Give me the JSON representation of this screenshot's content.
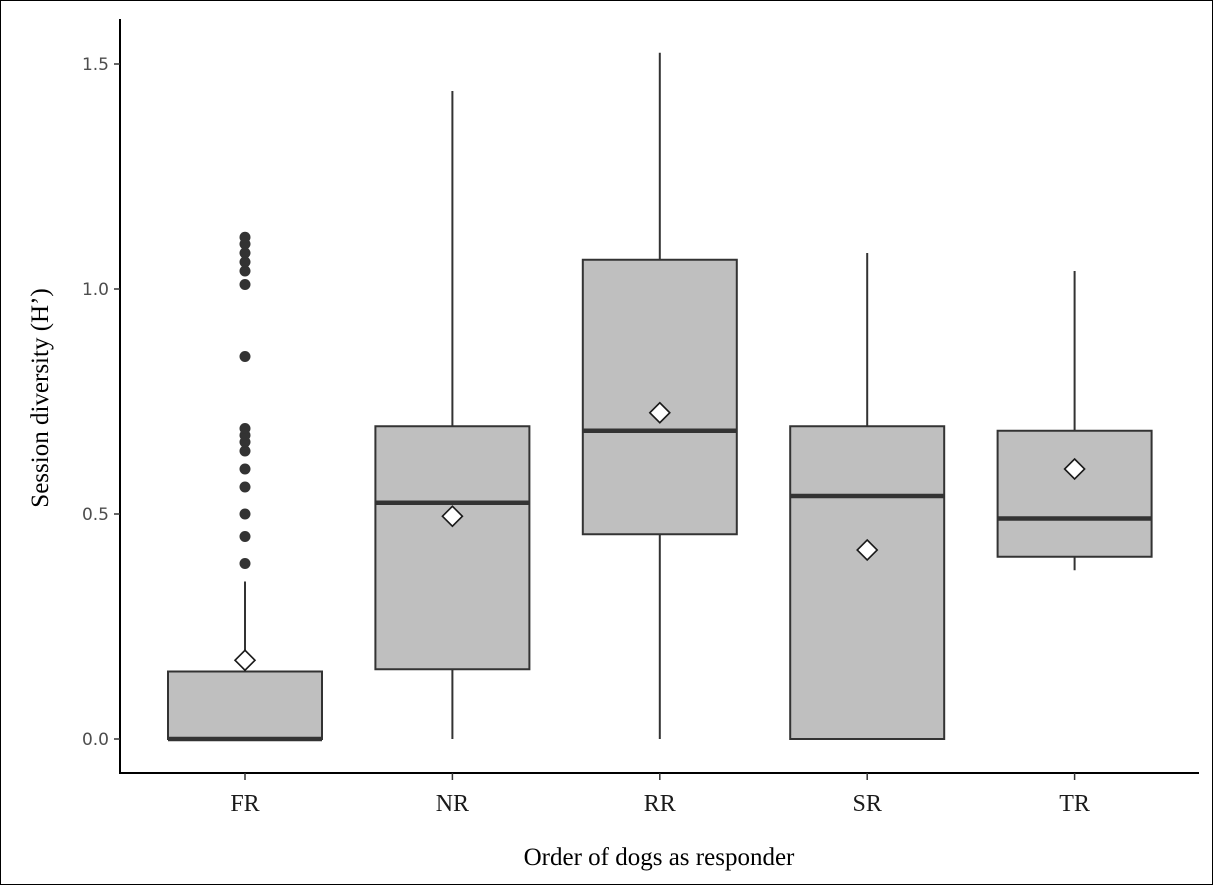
{
  "chart_data": {
    "type": "boxplot",
    "xlabel": "Order of dogs as responder",
    "ylabel": "Session diversity (H’)",
    "ylim": [
      -0.08,
      1.6
    ],
    "yticks": [
      0.0,
      0.5,
      1.0,
      1.5
    ],
    "ytick_labels": [
      "0.0",
      "0.5",
      "1.0",
      "1.5"
    ],
    "grid": false,
    "legend": "none",
    "colors": {
      "box_fill": "#bfbfbf",
      "box_stroke": "#333333",
      "outlier": "#333333",
      "axis": "#000000"
    },
    "boxes": [
      {
        "category": "FR",
        "whisker_low": 0.0,
        "q1": 0.0,
        "median": 0.0,
        "q3": 0.15,
        "whisker_high": 0.35,
        "mean": 0.175,
        "outliers": [
          0.39,
          0.45,
          0.5,
          0.56,
          0.6,
          0.64,
          0.66,
          0.675,
          0.69,
          0.85,
          1.01,
          1.04,
          1.06,
          1.08,
          1.1,
          1.115
        ]
      },
      {
        "category": "NR",
        "whisker_low": 0.0,
        "q1": 0.155,
        "median": 0.525,
        "q3": 0.695,
        "whisker_high": 1.44,
        "mean": 0.495,
        "outliers": []
      },
      {
        "category": "RR",
        "whisker_low": 0.0,
        "q1": 0.455,
        "median": 0.685,
        "q3": 1.065,
        "whisker_high": 1.525,
        "mean": 0.725,
        "outliers": []
      },
      {
        "category": "SR",
        "whisker_low": 0.0,
        "q1": 0.0,
        "median": 0.54,
        "q3": 0.695,
        "whisker_high": 1.08,
        "mean": 0.42,
        "outliers": []
      },
      {
        "category": "TR",
        "whisker_low": 0.375,
        "q1": 0.405,
        "median": 0.49,
        "q3": 0.685,
        "whisker_high": 1.04,
        "mean": 0.6,
        "outliers": []
      }
    ]
  }
}
